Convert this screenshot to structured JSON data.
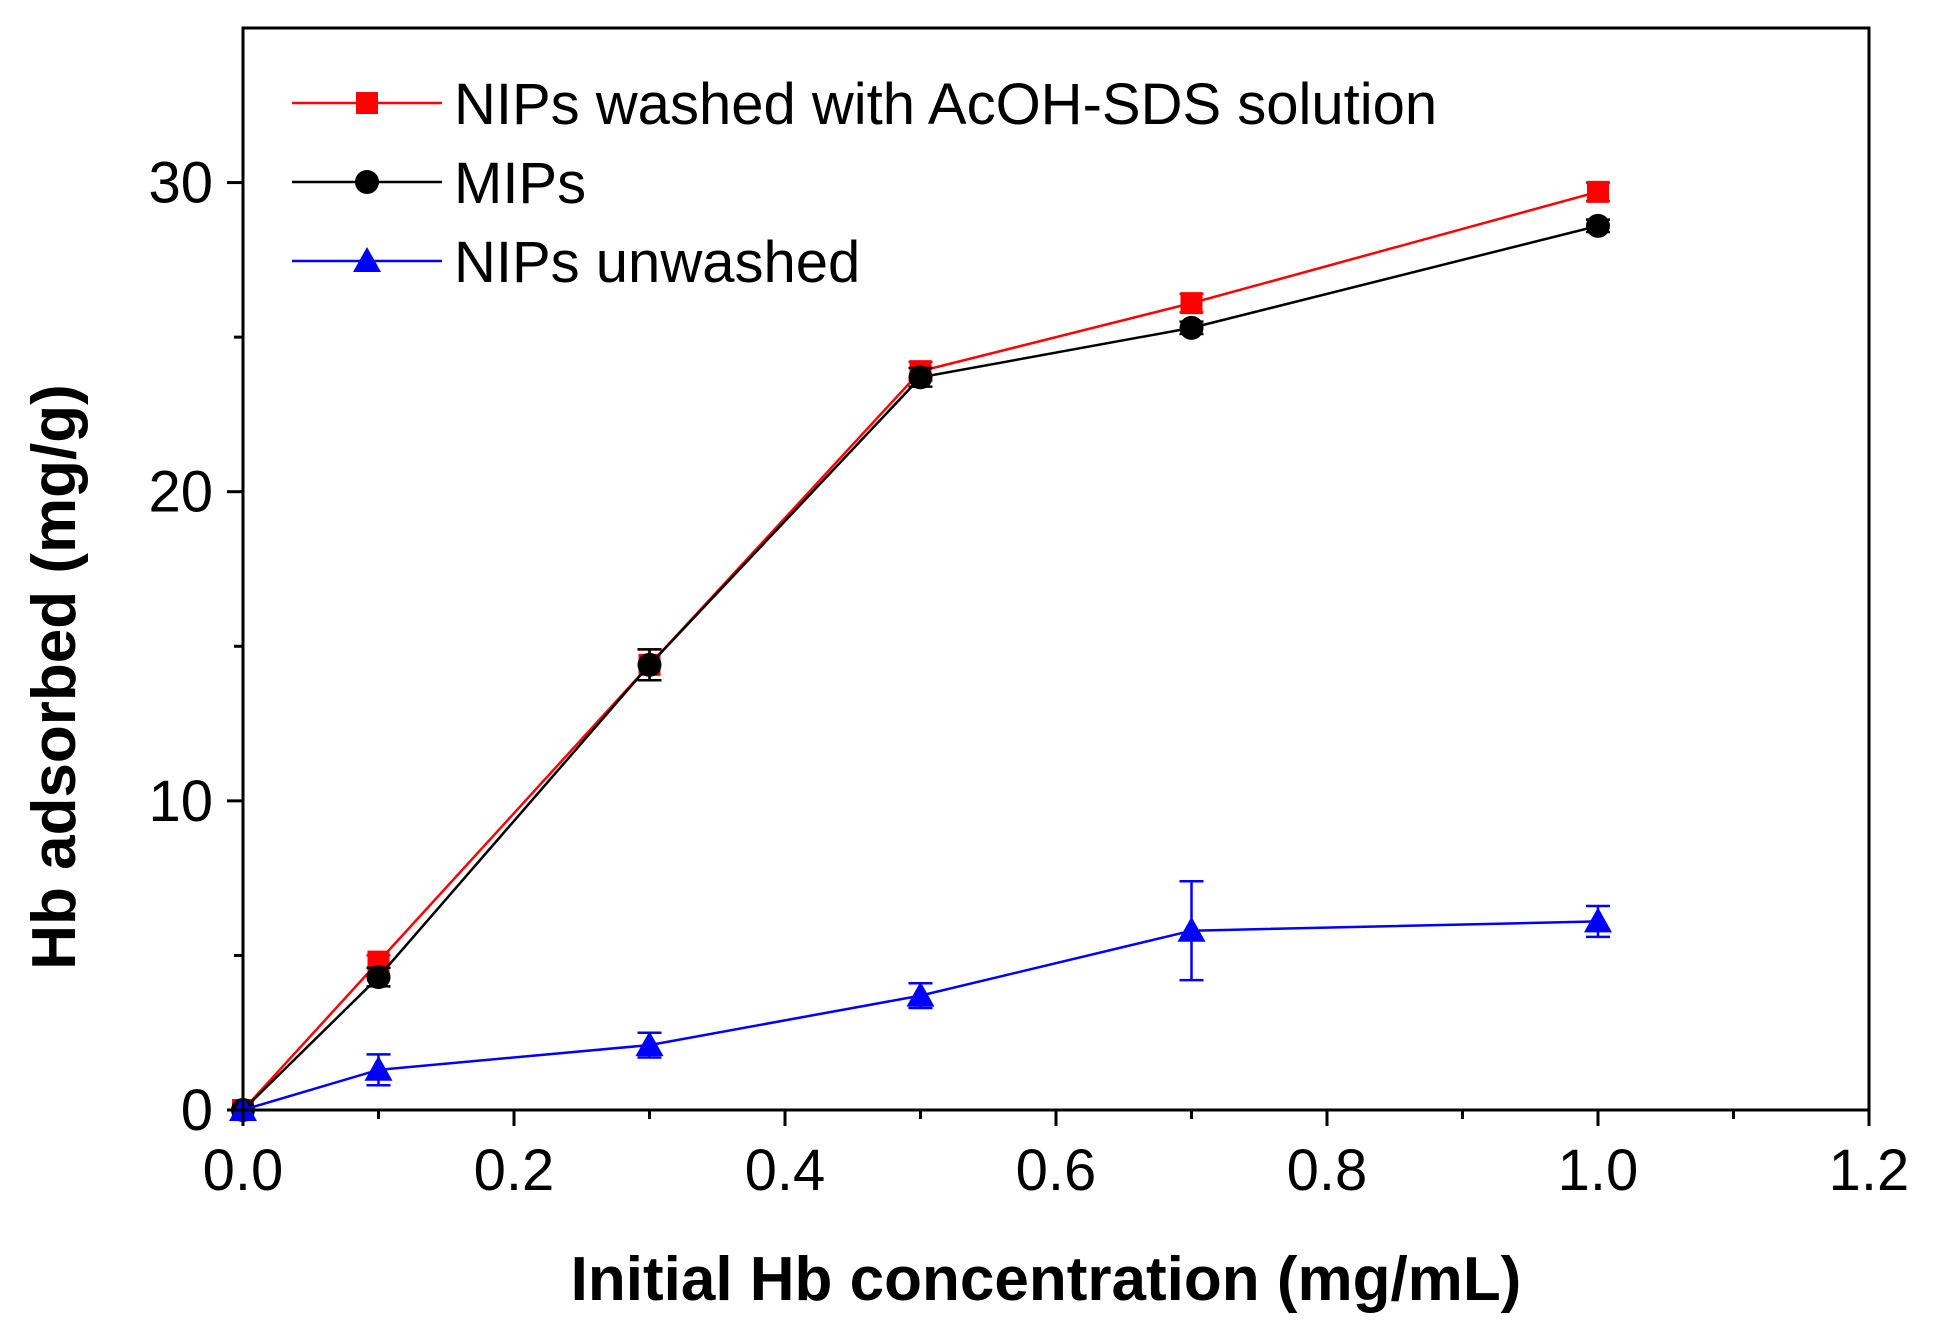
{
  "chart_data": {
    "type": "line",
    "xlabel": "Initial Hb concentration (mg/mL)",
    "ylabel": "Hb adsorbed (mg/g)",
    "xlim": [
      0.0,
      1.2
    ],
    "ylim": [
      0,
      35
    ],
    "x_ticks": [
      "0.0",
      "0.2",
      "0.4",
      "0.6",
      "0.8",
      "1.0",
      "1.2"
    ],
    "y_ticks": [
      "0",
      "10",
      "20",
      "30"
    ],
    "grid": false,
    "legend_position": "top-left",
    "series": [
      {
        "name": "NIPs washed with AcOH-SDS solution",
        "color": "#ff0000",
        "marker": "square",
        "x": [
          0.0,
          0.1,
          0.3,
          0.5,
          0.7,
          1.0
        ],
        "y": [
          0.0,
          4.8,
          14.4,
          23.9,
          26.1,
          29.7
        ],
        "error": [
          0,
          0.2,
          0.5,
          0.3,
          0.3,
          0.3
        ]
      },
      {
        "name": "MIPs",
        "color": "#000000",
        "marker": "circle",
        "x": [
          0.0,
          0.1,
          0.3,
          0.5,
          0.7,
          1.0
        ],
        "y": [
          0.0,
          4.3,
          14.4,
          23.7,
          25.3,
          28.6
        ],
        "error": [
          0,
          0.3,
          0.5,
          0.3,
          0.2,
          0.2
        ]
      },
      {
        "name": "NIPs unwashed",
        "color": "#0000ff",
        "marker": "triangle",
        "x": [
          0.0,
          0.1,
          0.3,
          0.5,
          0.7,
          1.0
        ],
        "y": [
          0.0,
          1.3,
          2.1,
          3.7,
          5.8,
          6.1
        ],
        "error": [
          0,
          0.5,
          0.4,
          0.4,
          1.6,
          0.5
        ]
      }
    ]
  }
}
